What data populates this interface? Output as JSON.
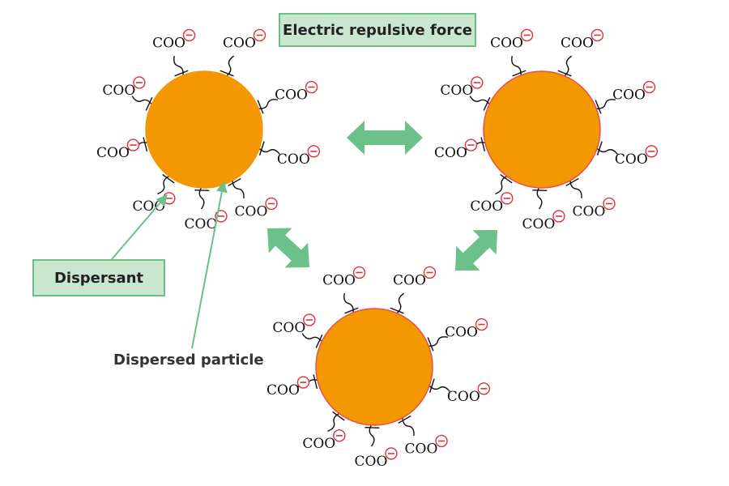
{
  "labels": {
    "force": "Electric repulsive force",
    "dispersant": "Dispersant",
    "particle": "Dispersed particle"
  },
  "group_text": "COO",
  "colors": {
    "particle_fill": "#f39800",
    "particle_stroke": "#e8504a",
    "arrow": "#6cc08a",
    "box_fill": "#c9e6cf",
    "box_border": "#6bbf86",
    "minus": "#e0303a"
  },
  "icons": {
    "negative_charge": "minus-in-circle",
    "repulsion": "double-headed-arrow"
  }
}
